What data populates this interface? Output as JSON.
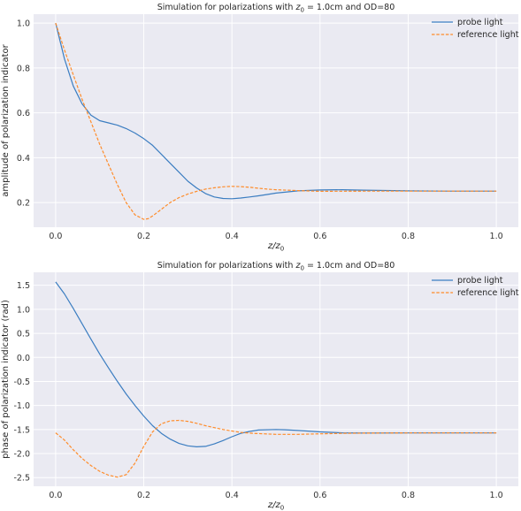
{
  "chart_data": [
    {
      "type": "line",
      "title_prefix": "Simulation for polarizations with ",
      "title_var": "z",
      "title_sub": "0",
      "title_suffix": " = 1.0cm and OD=80",
      "xlabel_var": "z/z",
      "xlabel_sub": "0",
      "ylabel": "amplitude of polarization indicator",
      "xlim": [
        -0.05,
        1.05
      ],
      "ylim": [
        0.09,
        1.04
      ],
      "xticks": [
        0.0,
        0.2,
        0.4,
        0.6,
        0.8,
        1.0
      ],
      "xtick_labels": [
        "0.0",
        "0.2",
        "0.4",
        "0.6",
        "0.8",
        "1.0"
      ],
      "yticks": [
        0.2,
        0.4,
        0.6,
        0.8,
        1.0
      ],
      "ytick_labels": [
        "0.2",
        "0.4",
        "0.6",
        "0.8",
        "1.0"
      ],
      "grid": true,
      "legend_position": "top-right",
      "series": [
        {
          "name": "probe light",
          "color": "#3b7dc1",
          "dash": "solid",
          "x": [
            0.0,
            0.02,
            0.04,
            0.06,
            0.08,
            0.1,
            0.12,
            0.14,
            0.16,
            0.18,
            0.2,
            0.22,
            0.24,
            0.26,
            0.28,
            0.3,
            0.32,
            0.34,
            0.36,
            0.38,
            0.4,
            0.42,
            0.44,
            0.46,
            0.48,
            0.5,
            0.55,
            0.6,
            0.65,
            0.7,
            0.8,
            0.9,
            1.0
          ],
          "y": [
            1.0,
            0.84,
            0.72,
            0.64,
            0.59,
            0.565,
            0.555,
            0.545,
            0.53,
            0.51,
            0.485,
            0.455,
            0.415,
            0.375,
            0.335,
            0.295,
            0.265,
            0.24,
            0.225,
            0.218,
            0.217,
            0.22,
            0.225,
            0.23,
            0.236,
            0.242,
            0.252,
            0.256,
            0.257,
            0.255,
            0.252,
            0.251,
            0.251
          ]
        },
        {
          "name": "reference light",
          "color": "#ff8c2a",
          "dash": "dashed",
          "x": [
            0.0,
            0.02,
            0.04,
            0.06,
            0.08,
            0.1,
            0.12,
            0.14,
            0.16,
            0.18,
            0.2,
            0.21,
            0.22,
            0.24,
            0.26,
            0.28,
            0.3,
            0.32,
            0.34,
            0.36,
            0.38,
            0.4,
            0.42,
            0.44,
            0.46,
            0.48,
            0.5,
            0.55,
            0.6,
            0.7,
            0.8,
            0.9,
            1.0
          ],
          "y": [
            1.0,
            0.88,
            0.77,
            0.66,
            0.56,
            0.46,
            0.37,
            0.28,
            0.2,
            0.145,
            0.125,
            0.128,
            0.14,
            0.17,
            0.2,
            0.222,
            0.238,
            0.25,
            0.26,
            0.266,
            0.27,
            0.272,
            0.271,
            0.268,
            0.264,
            0.26,
            0.257,
            0.253,
            0.25,
            0.251,
            0.251,
            0.251,
            0.251
          ]
        }
      ]
    },
    {
      "type": "line",
      "title_prefix": "Simulation for polarizations with ",
      "title_var": "z",
      "title_sub": "0",
      "title_suffix": " = 1.0cm and OD=80",
      "xlabel_var": "z/z",
      "xlabel_sub": "0",
      "ylabel": "phase of polarization indicator (rad)",
      "xlim": [
        -0.05,
        1.05
      ],
      "ylim": [
        -2.68,
        1.77
      ],
      "xticks": [
        0.0,
        0.2,
        0.4,
        0.6,
        0.8,
        1.0
      ],
      "xtick_labels": [
        "0.0",
        "0.2",
        "0.4",
        "0.6",
        "0.8",
        "1.0"
      ],
      "yticks": [
        1.5,
        1.0,
        0.5,
        0.0,
        -0.5,
        -1.0,
        -1.5,
        -2.0,
        -2.5
      ],
      "ytick_labels": [
        "1.5",
        "1.0",
        "0.5",
        "0.0",
        "-0.5",
        "-1.0",
        "-1.5",
        "-2.0",
        "-2.5"
      ],
      "grid": true,
      "legend_position": "top-right",
      "series": [
        {
          "name": "probe light",
          "color": "#3b7dc1",
          "dash": "solid",
          "x": [
            0.0,
            0.02,
            0.04,
            0.06,
            0.08,
            0.1,
            0.12,
            0.14,
            0.16,
            0.18,
            0.2,
            0.22,
            0.24,
            0.26,
            0.28,
            0.3,
            0.32,
            0.34,
            0.36,
            0.38,
            0.4,
            0.42,
            0.44,
            0.46,
            0.5,
            0.52,
            0.55,
            0.6,
            0.65,
            0.7,
            0.8,
            0.9,
            1.0
          ],
          "y": [
            1.57,
            1.32,
            1.02,
            0.7,
            0.38,
            0.07,
            -0.22,
            -0.5,
            -0.76,
            -1.0,
            -1.22,
            -1.42,
            -1.58,
            -1.7,
            -1.79,
            -1.84,
            -1.86,
            -1.85,
            -1.8,
            -1.73,
            -1.65,
            -1.58,
            -1.54,
            -1.51,
            -1.5,
            -1.505,
            -1.52,
            -1.55,
            -1.57,
            -1.575,
            -1.572,
            -1.571,
            -1.571
          ]
        },
        {
          "name": "reference light",
          "color": "#ff8c2a",
          "dash": "dashed",
          "x": [
            0.0,
            0.02,
            0.04,
            0.06,
            0.08,
            0.1,
            0.12,
            0.14,
            0.16,
            0.18,
            0.2,
            0.22,
            0.24,
            0.26,
            0.28,
            0.3,
            0.32,
            0.34,
            0.36,
            0.38,
            0.4,
            0.42,
            0.45,
            0.5,
            0.55,
            0.6,
            0.65,
            0.7,
            0.8,
            0.9,
            1.0
          ],
          "y": [
            -1.57,
            -1.72,
            -1.92,
            -2.1,
            -2.25,
            -2.37,
            -2.45,
            -2.49,
            -2.44,
            -2.2,
            -1.85,
            -1.55,
            -1.38,
            -1.32,
            -1.31,
            -1.33,
            -1.37,
            -1.42,
            -1.46,
            -1.5,
            -1.53,
            -1.56,
            -1.58,
            -1.6,
            -1.6,
            -1.59,
            -1.58,
            -1.575,
            -1.572,
            -1.571,
            -1.571
          ]
        }
      ]
    }
  ]
}
